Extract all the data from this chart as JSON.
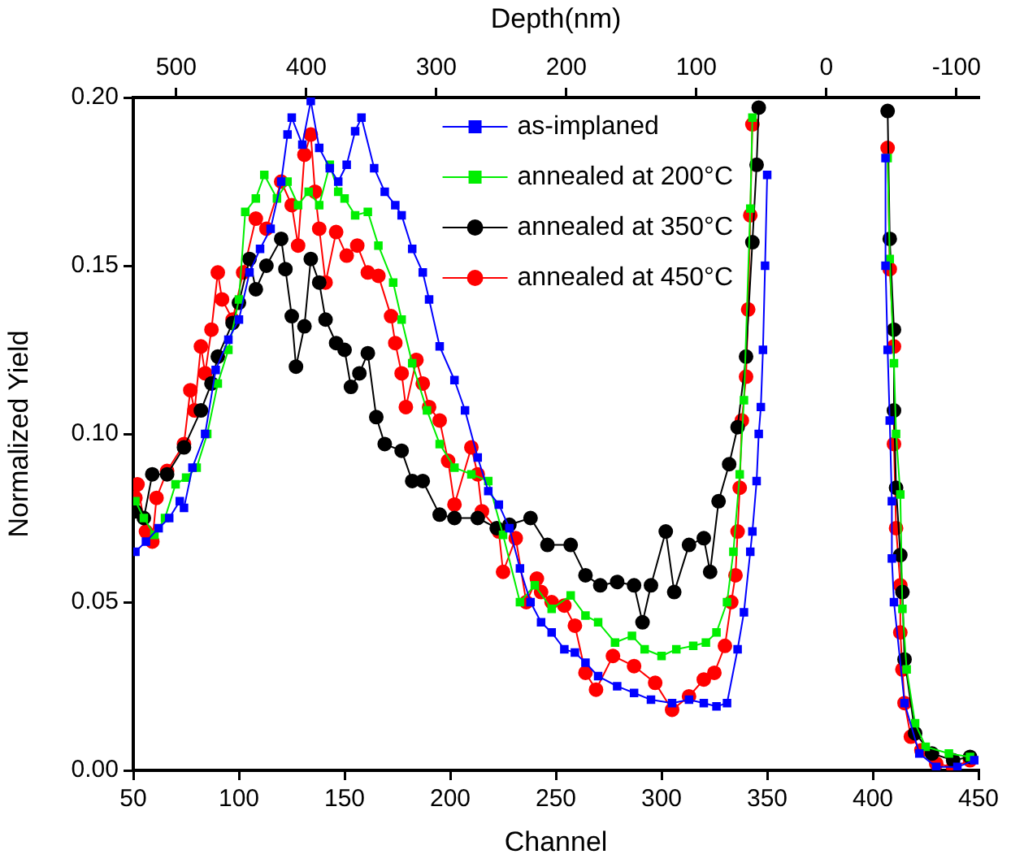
{
  "chart_data": {
    "type": "line",
    "xlabel": "Channel",
    "ylabel": "Normalized Yield",
    "x2label": "Depth(nm)",
    "xlim": [
      50,
      450
    ],
    "xticks": [
      50,
      100,
      150,
      200,
      250,
      300,
      350,
      400,
      450
    ],
    "ylim": [
      0,
      0.2
    ],
    "yticks": [
      {
        "value": 0,
        "label": "0.00"
      },
      {
        "value": 0.05,
        "label": "0.05"
      },
      {
        "value": 0.1,
        "label": "0.10"
      },
      {
        "value": 0.15,
        "label": "0.15"
      },
      {
        "value": 0.2,
        "label": "0.20"
      }
    ],
    "x2lim": [
      533,
      -117
    ],
    "x2ticks": [
      500,
      400,
      300,
      200,
      100,
      0,
      -100
    ],
    "grid": false,
    "legend": "top right",
    "line_style": "solid",
    "series": [
      {
        "name": "as-implaned",
        "color": "#0000ff",
        "marker": "square",
        "x": [
          51,
          56,
          62,
          67,
          72,
          74,
          78,
          84,
          89,
          95,
          100,
          105,
          110,
          115,
          120,
          123,
          125,
          130,
          134,
          138,
          143,
          147,
          151,
          155,
          158,
          164,
          169,
          174,
          177,
          182,
          187,
          190,
          195,
          202,
          207,
          213,
          218,
          223,
          228,
          233,
          238,
          243,
          248,
          254,
          259,
          264,
          270,
          279,
          287,
          295,
          305,
          313,
          320,
          326,
          331,
          336,
          339,
          342,
          343,
          345,
          346,
          347,
          348,
          349,
          350,
          378,
          406,
          406,
          407,
          408,
          409,
          409,
          410,
          415,
          422,
          430,
          440,
          448
        ],
        "values": [
          0.065,
          0.068,
          0.072,
          0.075,
          0.08,
          0.078,
          0.09,
          0.1,
          0.119,
          0.128,
          0.134,
          0.148,
          0.155,
          0.161,
          0.175,
          0.189,
          0.194,
          0.186,
          0.199,
          0.185,
          0.179,
          0.175,
          0.18,
          0.19,
          0.194,
          0.179,
          0.172,
          0.168,
          0.165,
          0.155,
          0.148,
          0.14,
          0.126,
          0.116,
          0.107,
          0.093,
          0.083,
          0.079,
          0.072,
          0.06,
          0.05,
          0.044,
          0.041,
          0.036,
          0.035,
          0.032,
          0.028,
          0.025,
          0.023,
          0.021,
          0.02,
          0.021,
          0.02,
          0.019,
          0.02,
          0.036,
          0.047,
          0.065,
          0.071,
          0.086,
          0.1,
          0.108,
          0.125,
          0.15,
          0.177,
          null,
          0.182,
          0.15,
          0.125,
          0.104,
          0.08,
          0.063,
          0.05,
          0.02,
          0.005,
          0.001,
          0.001,
          0.003
        ]
      },
      {
        "name": "annealed at 200°C",
        "color": "#00ee00",
        "marker": "square",
        "x": [
          51,
          55,
          60,
          65,
          70,
          75,
          80,
          85,
          90,
          95,
          100,
          103,
          108,
          112,
          118,
          123,
          128,
          133,
          138,
          143,
          147,
          150,
          155,
          161,
          166,
          173,
          177,
          182,
          189,
          195,
          202,
          210,
          218,
          225,
          233,
          240,
          248,
          257,
          264,
          270,
          278,
          286,
          292,
          300,
          307,
          315,
          321,
          326,
          331,
          334,
          337,
          339,
          342,
          343,
          375,
          407,
          408,
          410,
          411,
          413,
          414,
          416,
          420,
          425,
          436,
          446
        ],
        "values": [
          0.08,
          0.075,
          0.07,
          0.075,
          0.085,
          0.087,
          0.09,
          0.1,
          0.115,
          0.125,
          0.14,
          0.166,
          0.17,
          0.177,
          0.17,
          0.175,
          0.168,
          0.172,
          0.168,
          0.18,
          0.172,
          0.17,
          0.165,
          0.166,
          0.156,
          0.145,
          0.134,
          0.121,
          0.107,
          0.097,
          0.09,
          0.088,
          0.086,
          0.07,
          0.05,
          0.055,
          0.048,
          0.052,
          0.046,
          0.044,
          0.038,
          0.04,
          0.036,
          0.034,
          0.036,
          0.037,
          0.038,
          0.041,
          0.05,
          0.065,
          0.088,
          0.11,
          0.167,
          0.194,
          null,
          0.182,
          0.152,
          0.121,
          0.1,
          0.082,
          0.048,
          0.03,
          0.014,
          0.007,
          0.005,
          0.004
        ]
      },
      {
        "name": "annealed at 350°C",
        "color": "#000000",
        "marker": "circle",
        "x": [
          51,
          55,
          59,
          66,
          74,
          82,
          87,
          90,
          97,
          100,
          105,
          108,
          113,
          120,
          122,
          125,
          127,
          131,
          134,
          138,
          141,
          146,
          150,
          153,
          157,
          161,
          165,
          169,
          177,
          182,
          187,
          195,
          202,
          213,
          222,
          228,
          238,
          246,
          257,
          264,
          271,
          279,
          287,
          291,
          295,
          302,
          306,
          313,
          320,
          323,
          327,
          332,
          336,
          340,
          343,
          345,
          346,
          376,
          407,
          408,
          410,
          410,
          411,
          413,
          414,
          415,
          420,
          428,
          438,
          446
        ],
        "values": [
          0.077,
          0.075,
          0.088,
          0.088,
          0.096,
          0.107,
          0.115,
          0.123,
          0.133,
          0.139,
          0.152,
          0.143,
          0.15,
          0.158,
          0.149,
          0.135,
          0.12,
          0.132,
          0.152,
          0.145,
          0.134,
          0.127,
          0.125,
          0.114,
          0.118,
          0.124,
          0.105,
          0.097,
          0.095,
          0.086,
          0.086,
          0.076,
          0.075,
          0.075,
          0.072,
          0.073,
          0.075,
          0.067,
          0.067,
          0.058,
          0.055,
          0.056,
          0.055,
          0.044,
          0.055,
          0.071,
          0.053,
          0.067,
          0.069,
          0.059,
          0.08,
          0.091,
          0.102,
          0.123,
          0.157,
          0.18,
          0.197,
          null,
          0.196,
          0.158,
          0.131,
          0.107,
          0.084,
          0.064,
          0.053,
          0.033,
          0.011,
          0.005,
          0.003,
          0.004
        ]
      },
      {
        "name": "annealed at 450°C",
        "color": "#ff0000",
        "marker": "circle",
        "x": [
          51,
          52,
          56,
          59,
          61,
          66,
          74,
          77,
          79,
          82,
          84,
          87,
          90,
          92,
          97,
          102,
          108,
          113,
          120,
          125,
          128,
          131,
          134,
          136,
          138,
          141,
          146,
          151,
          156,
          161,
          166,
          172,
          174,
          177,
          179,
          184,
          187,
          190,
          195,
          199,
          202,
          210,
          213,
          215,
          223,
          225,
          231,
          236,
          241,
          243,
          248,
          254,
          259,
          264,
          269,
          277,
          287,
          297,
          305,
          313,
          320,
          325,
          330,
          333,
          335,
          336,
          337,
          338,
          340,
          341,
          342,
          343,
          375,
          407,
          408,
          410,
          410,
          411,
          413,
          413,
          414,
          415,
          418,
          423,
          430,
          438,
          446
        ],
        "values": [
          0.081,
          0.085,
          0.071,
          0.068,
          0.081,
          0.089,
          0.097,
          0.113,
          0.107,
          0.126,
          0.118,
          0.131,
          0.148,
          0.14,
          0.134,
          0.148,
          0.164,
          0.161,
          0.175,
          0.168,
          0.156,
          0.183,
          0.189,
          0.172,
          0.161,
          0.145,
          0.16,
          0.153,
          0.156,
          0.148,
          0.147,
          0.135,
          0.127,
          0.118,
          0.108,
          0.122,
          0.115,
          0.108,
          0.104,
          0.092,
          0.079,
          0.096,
          0.088,
          0.077,
          0.071,
          0.059,
          0.069,
          0.05,
          0.057,
          0.053,
          0.05,
          0.049,
          0.043,
          0.029,
          0.024,
          0.034,
          0.031,
          0.026,
          0.018,
          0.022,
          0.027,
          0.029,
          0.037,
          0.05,
          0.058,
          0.071,
          0.084,
          0.104,
          0.117,
          0.137,
          0.165,
          0.192,
          null,
          0.185,
          0.149,
          0.126,
          0.097,
          0.072,
          0.055,
          0.041,
          0.03,
          0.02,
          0.01,
          0.006,
          0.002,
          0.001,
          0.003
        ]
      }
    ]
  }
}
